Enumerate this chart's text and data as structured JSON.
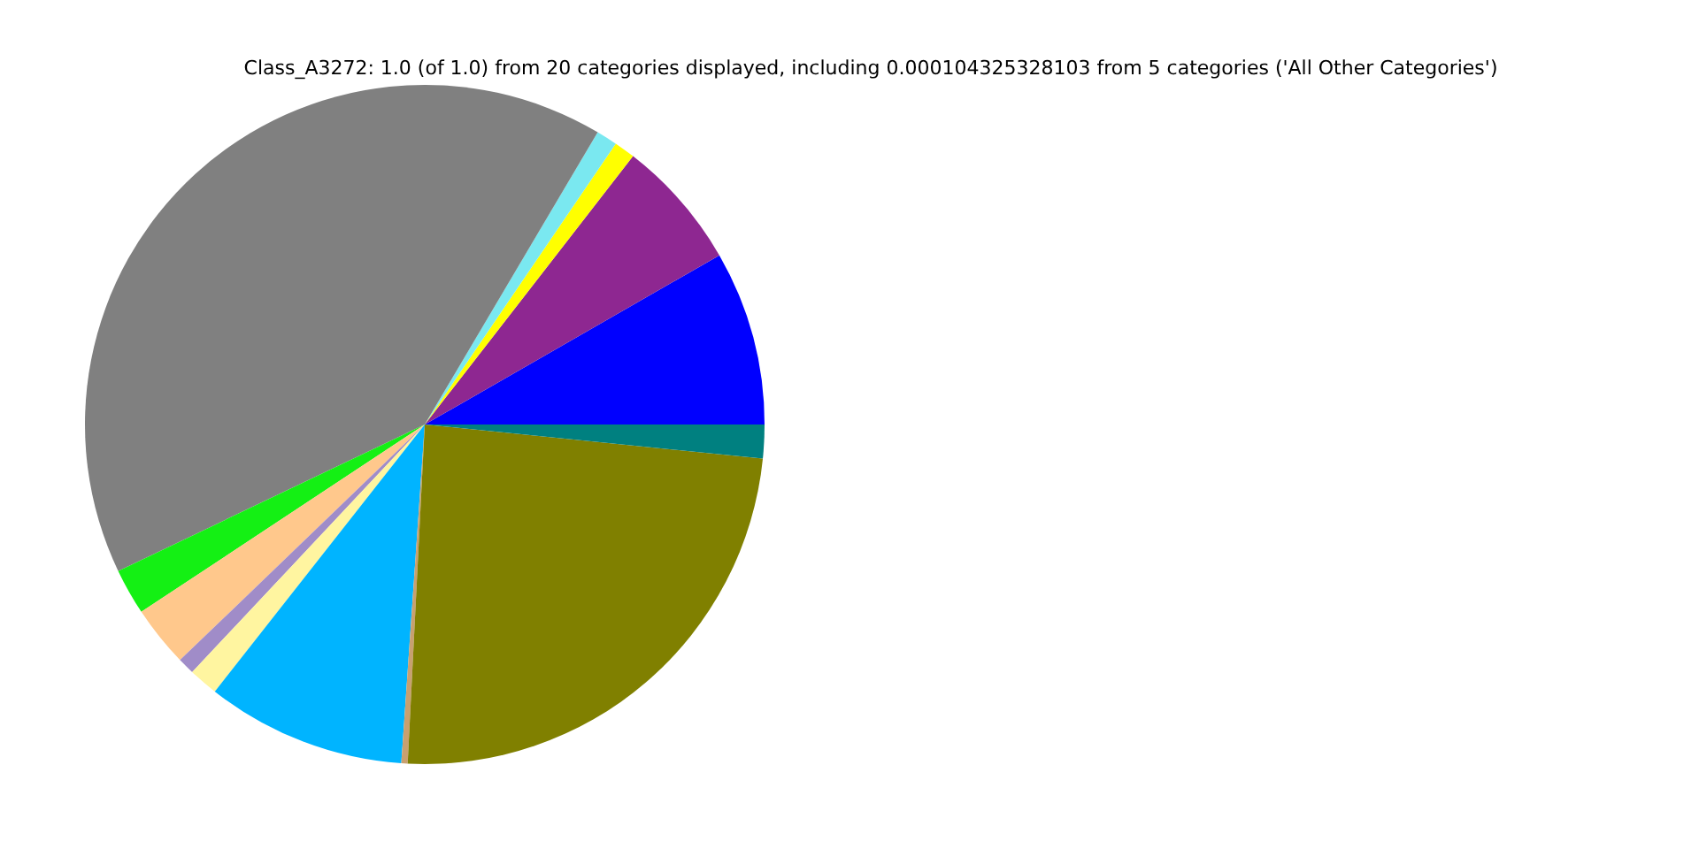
{
  "chart_data": {
    "type": "pie",
    "title": "Class_A3272: 1.0 (of 1.0) from 20 categories displayed, including 0.000104325328103 from 5 categories ('All Other Categories')",
    "categories": [
      null,
      null,
      null,
      null,
      null,
      null,
      null,
      null,
      null,
      null,
      null,
      null,
      null
    ],
    "values": [
      8.3,
      6.2,
      1.0,
      1.0,
      40.6,
      2.2,
      2.9,
      0.8,
      1.4,
      9.5,
      0.3,
      24.2,
      1.6
    ],
    "colors": [
      "#0000ff",
      "#8e2791",
      "#ffff00",
      "#7ae8f0",
      "#808080",
      "#14f014",
      "#ffc88c",
      "#a08cc8",
      "#fff5a0",
      "#00b4ff",
      "#c8a070",
      "#808000",
      "#008080"
    ],
    "legend": false
  }
}
